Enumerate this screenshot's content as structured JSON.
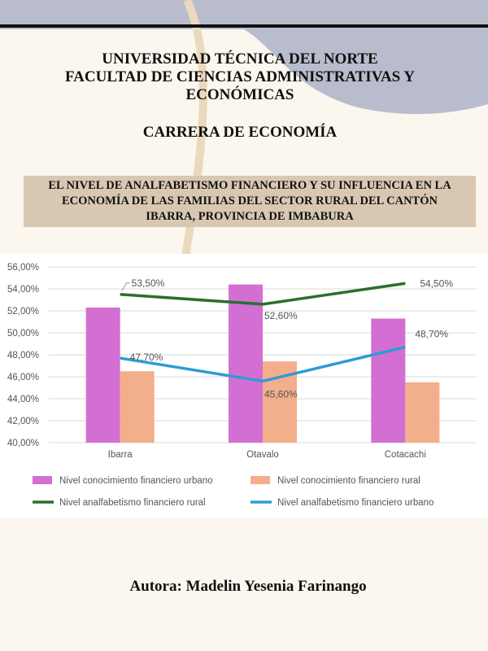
{
  "header": {
    "university": "UNIVERSIDAD TÉCNICA DEL NORTE",
    "faculty_line1": "FACULTAD DE CIENCIAS ADMINISTRATIVAS Y",
    "faculty_line2": "ECONÓMICAS",
    "career": "CARRERA DE ECONOMÍA"
  },
  "title": {
    "line1": "EL NIVEL DE ANALFABETISMO FINANCIERO Y SU INFLUENCIA EN LA",
    "line2": "ECONOMÍA DE LAS FAMILIAS DEL SECTOR RURAL DEL CANTÓN",
    "line3": "IBARRA, PROVINCIA DE IMBABURA"
  },
  "author": "Autora: Madelin Yesenia Farinango",
  "colors": {
    "page_bg": "#fbf6ee",
    "wave": "#b9bccd",
    "title_box": "#d8c8b2",
    "bar_urbano": "#d36fd3",
    "bar_rural": "#f3ae8c",
    "line_rural": "#2c6e2f",
    "line_urbano": "#2f9bd6"
  },
  "chart_data": {
    "type": "bar",
    "categories": [
      "Ibarra",
      "Otavalo",
      "Cotacachi"
    ],
    "ylim": [
      40,
      56
    ],
    "yticks": [
      "40,00%",
      "42,00%",
      "44,00%",
      "46,00%",
      "48,00%",
      "50,00%",
      "52,00%",
      "54,00%",
      "56,00%"
    ],
    "grid": true,
    "legend_position": "bottom",
    "series": [
      {
        "name": "Nivel conocimiento financiero urbano",
        "kind": "bar",
        "color": "#d36fd3",
        "values": [
          52.3,
          54.4,
          51.3
        ]
      },
      {
        "name": "Nivel conocimiento financiero rural",
        "kind": "bar",
        "color": "#f3ae8c",
        "values": [
          46.5,
          47.4,
          45.5
        ]
      },
      {
        "name": "Nivel analfabetismo financiero rural",
        "kind": "line",
        "color": "#2c6e2f",
        "values": [
          53.5,
          52.6,
          54.5
        ],
        "labels": [
          "53,50%",
          "52,60%",
          "54,50%"
        ]
      },
      {
        "name": "Nivel analfabetismo financiero urbano",
        "kind": "line",
        "color": "#2f9bd6",
        "values": [
          47.7,
          45.6,
          48.7
        ],
        "labels": [
          "47,70%",
          "45,60%",
          "48,70%"
        ]
      }
    ]
  }
}
